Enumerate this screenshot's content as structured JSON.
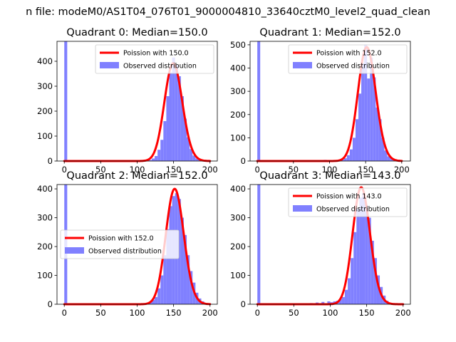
{
  "chart_data": {
    "suptitle": "n file: modeM0/AS1T04_076T01_9000004810_33640cztM0_level2_quad_clean",
    "panels": [
      {
        "title": "Quadrant 0: Median=150.0",
        "type": "bar+line",
        "xlim": [
          -10,
          210
        ],
        "ylim": [
          0,
          480
        ],
        "xticks": [
          0,
          50,
          100,
          150,
          200
        ],
        "xtick_labels": [
          "0",
          "50",
          "100",
          "150",
          "200"
        ],
        "yticks": [
          0,
          100,
          200,
          300,
          400
        ],
        "ytick_labels": [
          "0",
          "100",
          "200",
          "300",
          "400"
        ],
        "legend": {
          "position": "upper right",
          "line_label": "Poission with 150.0",
          "bar_label": "Observed distribution"
        },
        "poisson_mean": 150.0,
        "poisson_amplitude": 392,
        "line_range": [
          0,
          200
        ],
        "bin_width": 4,
        "bins": [
          [
            0,
            480
          ],
          [
            112,
            2
          ],
          [
            116,
            4
          ],
          [
            120,
            10
          ],
          [
            124,
            20
          ],
          [
            128,
            45
          ],
          [
            132,
            85
          ],
          [
            136,
            160
          ],
          [
            140,
            260
          ],
          [
            144,
            355
          ],
          [
            148,
            415
          ],
          [
            152,
            385
          ],
          [
            156,
            340
          ],
          [
            160,
            260
          ],
          [
            164,
            170
          ],
          [
            168,
            95
          ],
          [
            172,
            48
          ],
          [
            176,
            22
          ],
          [
            180,
            10
          ],
          [
            184,
            5
          ],
          [
            188,
            2
          ]
        ]
      },
      {
        "title": "Quadrant 1: Median=152.0",
        "type": "bar+line",
        "xlim": [
          -10,
          212
        ],
        "ylim": [
          0,
          515
        ],
        "xticks": [
          0,
          50,
          100,
          150,
          200
        ],
        "xtick_labels": [
          "0",
          "50",
          "100",
          "150",
          "200"
        ],
        "yticks": [
          0,
          100,
          200,
          300,
          400,
          500
        ],
        "ytick_labels": [
          "0",
          "100",
          "200",
          "300",
          "400",
          "500"
        ],
        "legend": {
          "position": "upper right",
          "line_label": "Poission with 152.0",
          "bar_label": "Observed distribution"
        },
        "poisson_mean": 152.0,
        "poisson_amplitude": 490,
        "line_range": [
          0,
          200
        ],
        "bin_width": 4,
        "bins": [
          [
            0,
            515
          ],
          [
            84,
            3
          ],
          [
            92,
            5
          ],
          [
            100,
            3
          ],
          [
            108,
            4
          ],
          [
            116,
            6
          ],
          [
            120,
            12
          ],
          [
            124,
            25
          ],
          [
            128,
            50
          ],
          [
            132,
            100
          ],
          [
            136,
            180
          ],
          [
            140,
            290
          ],
          [
            144,
            420
          ],
          [
            148,
            500
          ],
          [
            152,
            355
          ],
          [
            156,
            445
          ],
          [
            160,
            360
          ],
          [
            164,
            230
          ],
          [
            168,
            180
          ],
          [
            172,
            100
          ],
          [
            176,
            45
          ],
          [
            180,
            20
          ],
          [
            184,
            12
          ],
          [
            188,
            6
          ],
          [
            192,
            3
          ]
        ]
      },
      {
        "title": "Quadrant 2: Median=152.0",
        "type": "bar+line",
        "xlim": [
          -10,
          210
        ],
        "ylim": [
          0,
          415
        ],
        "xticks": [
          0,
          50,
          100,
          150,
          200
        ],
        "xtick_labels": [
          "0",
          "50",
          "100",
          "150",
          "200"
        ],
        "yticks": [
          0,
          100,
          200,
          300,
          400
        ],
        "ytick_labels": [
          "0",
          "100",
          "200",
          "300",
          "400"
        ],
        "legend": {
          "position": "center left",
          "line_label": "Poission with 152.0",
          "bar_label": "Observed distribution"
        },
        "poisson_mean": 152.0,
        "poisson_amplitude": 400,
        "line_range": [
          0,
          200
        ],
        "bin_width": 4,
        "bins": [
          [
            0,
            415
          ],
          [
            112,
            4
          ],
          [
            116,
            8
          ],
          [
            120,
            15
          ],
          [
            124,
            25
          ],
          [
            128,
            55
          ],
          [
            132,
            100
          ],
          [
            136,
            170
          ],
          [
            140,
            260
          ],
          [
            144,
            340
          ],
          [
            148,
            375
          ],
          [
            152,
            385
          ],
          [
            156,
            365
          ],
          [
            160,
            300
          ],
          [
            164,
            240
          ],
          [
            168,
            170
          ],
          [
            172,
            115
          ],
          [
            176,
            75
          ],
          [
            180,
            40
          ],
          [
            184,
            20
          ],
          [
            188,
            10
          ]
        ]
      },
      {
        "title": "Quadrant 3: Median=143.0",
        "type": "bar+line",
        "xlim": [
          -10,
          210
        ],
        "ylim": [
          0,
          415
        ],
        "xticks": [
          0,
          50,
          100,
          150,
          200
        ],
        "xtick_labels": [
          "0",
          "50",
          "100",
          "150",
          "200"
        ],
        "yticks": [
          0,
          100,
          200,
          300,
          400
        ],
        "ytick_labels": [
          "0",
          "100",
          "200",
          "300",
          "400"
        ],
        "legend": {
          "position": "upper right",
          "line_label": "Poission with 143.0",
          "bar_label": "Observed distribution"
        },
        "poisson_mean": 143.0,
        "poisson_amplitude": 405,
        "line_range": [
          0,
          200
        ],
        "bin_width": 4,
        "bins": [
          [
            0,
            415
          ],
          [
            72,
            4
          ],
          [
            80,
            6
          ],
          [
            88,
            8
          ],
          [
            96,
            10
          ],
          [
            100,
            7
          ],
          [
            104,
            10
          ],
          [
            108,
            12
          ],
          [
            112,
            18
          ],
          [
            116,
            25
          ],
          [
            120,
            50
          ],
          [
            124,
            90
          ],
          [
            128,
            160
          ],
          [
            132,
            250
          ],
          [
            136,
            330
          ],
          [
            140,
            370
          ],
          [
            144,
            385
          ],
          [
            148,
            340
          ],
          [
            152,
            300
          ],
          [
            156,
            220
          ],
          [
            160,
            160
          ],
          [
            164,
            100
          ],
          [
            168,
            60
          ],
          [
            172,
            30
          ],
          [
            176,
            12
          ],
          [
            180,
            5
          ]
        ]
      }
    ]
  },
  "colors": {
    "bar": "#8080ff",
    "line": "#ff0000",
    "axis": "#000000",
    "background": "#ffffff"
  }
}
